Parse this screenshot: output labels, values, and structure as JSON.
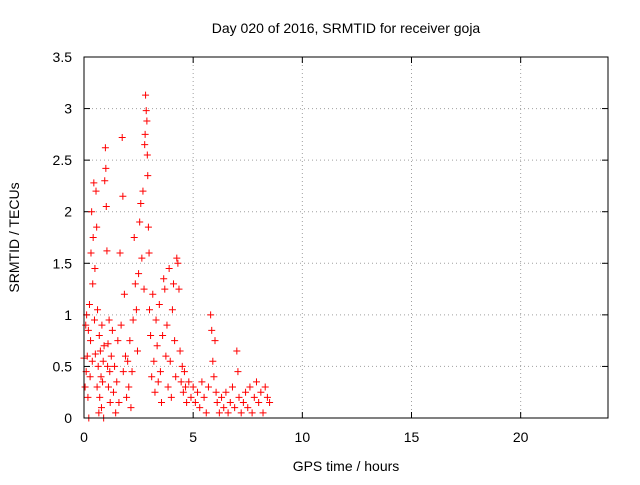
{
  "chart_data": {
    "type": "scatter",
    "title": "Day 020 of 2016, SRMTID for receiver goja",
    "xlabel": "GPS time / hours",
    "ylabel": "SRMTID / TECUs",
    "xlim": [
      0,
      24
    ],
    "ylim": [
      0,
      3.5
    ],
    "x_ticks": [
      0,
      5,
      10,
      15,
      20
    ],
    "x_tick_labels": [
      "0",
      "5",
      "10",
      "15",
      "20"
    ],
    "y_ticks": [
      0,
      0.5,
      1,
      1.5,
      2,
      2.5,
      3,
      3.5
    ],
    "y_tick_labels": [
      "0",
      "0.5",
      "1",
      "1.5",
      "2",
      "2.5",
      "3",
      "3.5"
    ],
    "grid": true,
    "legend": "none",
    "marker": "+",
    "color": "#ff0000",
    "points": [
      [
        0.0,
        0.58
      ],
      [
        0.05,
        0.3
      ],
      [
        0.08,
        0.9
      ],
      [
        0.1,
        0.45
      ],
      [
        0.12,
        1.0
      ],
      [
        0.15,
        0.6
      ],
      [
        0.18,
        0.2
      ],
      [
        0.2,
        0.85
      ],
      [
        0.22,
        0.0
      ],
      [
        0.25,
        1.1
      ],
      [
        0.28,
        0.4
      ],
      [
        0.3,
        0.75
      ],
      [
        0.32,
        1.6
      ],
      [
        0.35,
        2.0
      ],
      [
        0.38,
        0.55
      ],
      [
        0.4,
        1.3
      ],
      [
        0.42,
        1.75
      ],
      [
        0.45,
        2.28
      ],
      [
        0.48,
        0.95
      ],
      [
        0.5,
        1.45
      ],
      [
        0.52,
        0.62
      ],
      [
        0.55,
        2.2
      ],
      [
        0.58,
        1.85
      ],
      [
        0.6,
        0.3
      ],
      [
        0.62,
        1.05
      ],
      [
        0.65,
        0.5
      ],
      [
        0.68,
        0.05
      ],
      [
        0.7,
        0.8
      ],
      [
        0.72,
        0.2
      ],
      [
        0.75,
        0.65
      ],
      [
        0.78,
        0.4
      ],
      [
        0.8,
        0.1
      ],
      [
        0.82,
        0.9
      ],
      [
        0.85,
        0.35
      ],
      [
        0.88,
        0.55
      ],
      [
        0.9,
        0.0
      ],
      [
        0.92,
        0.7
      ],
      [
        0.95,
        2.3
      ],
      [
        0.98,
        2.62
      ],
      [
        1.0,
        2.42
      ],
      [
        1.02,
        2.05
      ],
      [
        1.05,
        1.62
      ],
      [
        1.08,
        0.5
      ],
      [
        1.1,
        0.72
      ],
      [
        1.12,
        0.3
      ],
      [
        1.15,
        0.95
      ],
      [
        1.18,
        0.45
      ],
      [
        1.2,
        0.15
      ],
      [
        1.25,
        0.6
      ],
      [
        1.3,
        0.85
      ],
      [
        1.35,
        0.25
      ],
      [
        1.4,
        0.5
      ],
      [
        1.45,
        0.05
      ],
      [
        1.5,
        0.35
      ],
      [
        1.55,
        0.75
      ],
      [
        1.6,
        0.15
      ],
      [
        1.65,
        1.6
      ],
      [
        1.7,
        0.9
      ],
      [
        1.75,
        2.72
      ],
      [
        1.78,
        2.15
      ],
      [
        1.8,
        0.45
      ],
      [
        1.85,
        1.2
      ],
      [
        1.9,
        0.6
      ],
      [
        1.95,
        0.2
      ],
      [
        2.0,
        0.55
      ],
      [
        2.05,
        0.3
      ],
      [
        2.1,
        0.75
      ],
      [
        2.15,
        0.1
      ],
      [
        2.2,
        0.45
      ],
      [
        2.25,
        0.95
      ],
      [
        2.3,
        1.75
      ],
      [
        2.35,
        1.3
      ],
      [
        2.4,
        1.05
      ],
      [
        2.45,
        0.65
      ],
      [
        2.5,
        1.4
      ],
      [
        2.55,
        1.9
      ],
      [
        2.6,
        2.08
      ],
      [
        2.65,
        1.55
      ],
      [
        2.7,
        2.2
      ],
      [
        2.75,
        1.25
      ],
      [
        2.78,
        2.65
      ],
      [
        2.8,
        2.75
      ],
      [
        2.82,
        3.13
      ],
      [
        2.85,
        2.98
      ],
      [
        2.88,
        2.88
      ],
      [
        2.9,
        2.55
      ],
      [
        2.92,
        2.35
      ],
      [
        2.95,
        1.85
      ],
      [
        2.98,
        1.6
      ],
      [
        3.0,
        1.05
      ],
      [
        3.05,
        0.8
      ],
      [
        3.1,
        0.4
      ],
      [
        3.15,
        1.2
      ],
      [
        3.2,
        0.55
      ],
      [
        3.25,
        0.25
      ],
      [
        3.3,
        0.95
      ],
      [
        3.35,
        0.7
      ],
      [
        3.4,
        0.35
      ],
      [
        3.45,
        1.1
      ],
      [
        3.5,
        0.45
      ],
      [
        3.55,
        0.15
      ],
      [
        3.6,
        0.8
      ],
      [
        3.65,
        1.35
      ],
      [
        3.7,
        1.25
      ],
      [
        3.75,
        0.6
      ],
      [
        3.8,
        0.9
      ],
      [
        3.85,
        0.3
      ],
      [
        3.9,
        1.45
      ],
      [
        3.95,
        0.55
      ],
      [
        4.0,
        0.2
      ],
      [
        4.05,
        1.05
      ],
      [
        4.1,
        1.3
      ],
      [
        4.15,
        0.75
      ],
      [
        4.2,
        0.4
      ],
      [
        4.25,
        1.55
      ],
      [
        4.3,
        1.5
      ],
      [
        4.35,
        1.25
      ],
      [
        4.4,
        0.65
      ],
      [
        4.45,
        0.35
      ],
      [
        4.5,
        0.5
      ],
      [
        4.55,
        0.25
      ],
      [
        4.6,
        0.45
      ],
      [
        4.65,
        0.3
      ],
      [
        4.7,
        0.15
      ],
      [
        4.8,
        0.35
      ],
      [
        4.9,
        0.2
      ],
      [
        5.0,
        0.3
      ],
      [
        5.1,
        0.15
      ],
      [
        5.2,
        0.25
      ],
      [
        5.3,
        0.1
      ],
      [
        5.4,
        0.35
      ],
      [
        5.5,
        0.2
      ],
      [
        5.6,
        0.05
      ],
      [
        5.7,
        0.3
      ],
      [
        5.8,
        1.0
      ],
      [
        5.85,
        0.85
      ],
      [
        5.9,
        0.55
      ],
      [
        5.95,
        0.4
      ],
      [
        6.0,
        0.75
      ],
      [
        6.05,
        0.25
      ],
      [
        6.1,
        0.15
      ],
      [
        6.2,
        0.05
      ],
      [
        6.3,
        0.2
      ],
      [
        6.4,
        0.1
      ],
      [
        6.5,
        0.25
      ],
      [
        6.6,
        0.05
      ],
      [
        6.7,
        0.15
      ],
      [
        6.8,
        0.3
      ],
      [
        6.9,
        0.1
      ],
      [
        7.0,
        0.65
      ],
      [
        7.05,
        0.45
      ],
      [
        7.1,
        0.2
      ],
      [
        7.2,
        0.05
      ],
      [
        7.3,
        0.15
      ],
      [
        7.4,
        0.25
      ],
      [
        7.5,
        0.1
      ],
      [
        7.6,
        0.3
      ],
      [
        7.7,
        0.05
      ],
      [
        7.8,
        0.2
      ],
      [
        7.9,
        0.35
      ],
      [
        8.0,
        0.15
      ],
      [
        8.1,
        0.25
      ],
      [
        8.2,
        0.05
      ],
      [
        8.3,
        0.3
      ],
      [
        8.4,
        0.2
      ],
      [
        8.5,
        0.15
      ]
    ]
  }
}
